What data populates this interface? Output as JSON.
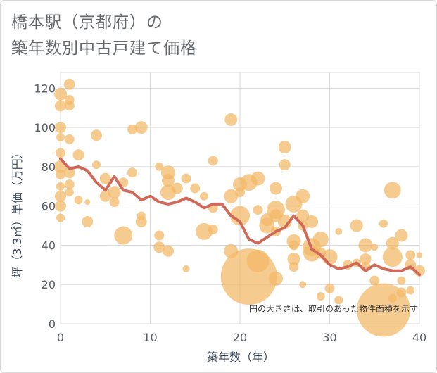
{
  "title": {
    "line1": "橋本駅（京都府）の",
    "line2": "築年数別中古戸建て価格"
  },
  "chart_data": {
    "type": "scatter",
    "title": "橋本駅（京都府）の築年数別中古戸建て価格",
    "xlabel": "築年数（年）",
    "ylabel": "坪（3.3㎡）単価（万円）",
    "xlim": [
      0,
      40
    ],
    "ylim": [
      0,
      128
    ],
    "xticks": [
      0,
      10,
      20,
      30,
      40
    ],
    "yticks": [
      0,
      20,
      40,
      60,
      80,
      100,
      120
    ],
    "grid": true,
    "annotation": "円の大きさは、取引のあった物件面積を示す",
    "colors": {
      "bubble": "#f2b765",
      "line": "#d0695a",
      "grid": "#d9d9d9"
    },
    "bubbles": [
      {
        "x": 0,
        "y": 117,
        "s": 9
      },
      {
        "x": 0,
        "y": 111,
        "s": 8
      },
      {
        "x": 0,
        "y": 100,
        "s": 8
      },
      {
        "x": 0,
        "y": 95,
        "s": 6
      },
      {
        "x": 0,
        "y": 87,
        "s": 7
      },
      {
        "x": 0,
        "y": 80,
        "s": 9
      },
      {
        "x": 0,
        "y": 76,
        "s": 7
      },
      {
        "x": 0,
        "y": 70,
        "s": 6
      },
      {
        "x": 0,
        "y": 65,
        "s": 8
      },
      {
        "x": 0,
        "y": 60,
        "s": 8
      },
      {
        "x": 0,
        "y": 54,
        "s": 6
      },
      {
        "x": 1,
        "y": 122,
        "s": 8
      },
      {
        "x": 1,
        "y": 114,
        "s": 7
      },
      {
        "x": 1,
        "y": 111,
        "s": 7
      },
      {
        "x": 1,
        "y": 94,
        "s": 7
      },
      {
        "x": 1,
        "y": 77,
        "s": 8
      },
      {
        "x": 1,
        "y": 71,
        "s": 7
      },
      {
        "x": 1,
        "y": 67,
        "s": 6
      },
      {
        "x": 2,
        "y": 86,
        "s": 8
      },
      {
        "x": 2,
        "y": 63,
        "s": 6
      },
      {
        "x": 3,
        "y": 62,
        "s": 4
      },
      {
        "x": 3,
        "y": 52,
        "s": 8
      },
      {
        "x": 4,
        "y": 96,
        "s": 8
      },
      {
        "x": 4,
        "y": 81,
        "s": 6
      },
      {
        "x": 5,
        "y": 74,
        "s": 8
      },
      {
        "x": 5,
        "y": 65,
        "s": 8
      },
      {
        "x": 6,
        "y": 67,
        "s": 9
      },
      {
        "x": 6,
        "y": 62,
        "s": 7
      },
      {
        "x": 7,
        "y": 72,
        "s": 7
      },
      {
        "x": 7,
        "y": 45,
        "s": 13
      },
      {
        "x": 8,
        "y": 99,
        "s": 7
      },
      {
        "x": 8,
        "y": 77,
        "s": 7
      },
      {
        "x": 9,
        "y": 100,
        "s": 9
      },
      {
        "x": 9,
        "y": 55,
        "s": 6
      },
      {
        "x": 9,
        "y": 52,
        "s": 8
      },
      {
        "x": 11,
        "y": 80,
        "s": 6
      },
      {
        "x": 11,
        "y": 45,
        "s": 7
      },
      {
        "x": 11,
        "y": 39,
        "s": 8
      },
      {
        "x": 12,
        "y": 77,
        "s": 10
      },
      {
        "x": 12,
        "y": 73,
        "s": 9
      },
      {
        "x": 12,
        "y": 67,
        "s": 11
      },
      {
        "x": 12,
        "y": 37,
        "s": 8
      },
      {
        "x": 13,
        "y": 69,
        "s": 8
      },
      {
        "x": 14,
        "y": 74,
        "s": 7
      },
      {
        "x": 14,
        "y": 28,
        "s": 5
      },
      {
        "x": 15,
        "y": 69,
        "s": 7
      },
      {
        "x": 16,
        "y": 65,
        "s": 6
      },
      {
        "x": 16,
        "y": 47,
        "s": 12
      },
      {
        "x": 17,
        "y": 83,
        "s": 7
      },
      {
        "x": 17,
        "y": 59,
        "s": 7
      },
      {
        "x": 17,
        "y": 48,
        "s": 7
      },
      {
        "x": 19,
        "y": 104,
        "s": 9
      },
      {
        "x": 19,
        "y": 65,
        "s": 10
      },
      {
        "x": 19,
        "y": 37,
        "s": 10
      },
      {
        "x": 20,
        "y": 71,
        "s": 10
      },
      {
        "x": 20,
        "y": 67,
        "s": 7
      },
      {
        "x": 20,
        "y": 55,
        "s": 14
      },
      {
        "x": 21,
        "y": 72,
        "s": 12
      },
      {
        "x": 21,
        "y": 24,
        "s": 40
      },
      {
        "x": 22,
        "y": 74,
        "s": 10
      },
      {
        "x": 22,
        "y": 58,
        "s": 7
      },
      {
        "x": 22,
        "y": 32,
        "s": 16
      },
      {
        "x": 23,
        "y": 53,
        "s": 9
      },
      {
        "x": 23,
        "y": 50,
        "s": 11
      },
      {
        "x": 24,
        "y": 69,
        "s": 9
      },
      {
        "x": 24,
        "y": 58,
        "s": 13
      },
      {
        "x": 24,
        "y": 55,
        "s": 9
      },
      {
        "x": 24,
        "y": 47,
        "s": 7
      },
      {
        "x": 24,
        "y": 23,
        "s": 10
      },
      {
        "x": 25,
        "y": 90,
        "s": 9
      },
      {
        "x": 25,
        "y": 81,
        "s": 8
      },
      {
        "x": 25,
        "y": 52,
        "s": 10
      },
      {
        "x": 26,
        "y": 61,
        "s": 12
      },
      {
        "x": 26,
        "y": 42,
        "s": 10
      },
      {
        "x": 26,
        "y": 40,
        "s": 7
      },
      {
        "x": 26,
        "y": 33,
        "s": 9
      },
      {
        "x": 26,
        "y": 29,
        "s": 7
      },
      {
        "x": 27,
        "y": 65,
        "s": 10
      },
      {
        "x": 27,
        "y": 55,
        "s": 9
      },
      {
        "x": 27,
        "y": 50,
        "s": 7
      },
      {
        "x": 27,
        "y": 20,
        "s": 5
      },
      {
        "x": 28,
        "y": 52,
        "s": 9
      },
      {
        "x": 28,
        "y": 39,
        "s": 13
      },
      {
        "x": 28,
        "y": 36,
        "s": 12
      },
      {
        "x": 29,
        "y": 43,
        "s": 11
      },
      {
        "x": 29,
        "y": 36,
        "s": 8
      },
      {
        "x": 29,
        "y": 14,
        "s": 6
      },
      {
        "x": 30,
        "y": 34,
        "s": 11
      },
      {
        "x": 30,
        "y": 18,
        "s": 7
      },
      {
        "x": 31,
        "y": 47,
        "s": 5
      },
      {
        "x": 31,
        "y": 12,
        "s": 6
      },
      {
        "x": 32,
        "y": 30,
        "s": 7
      },
      {
        "x": 33,
        "y": 50,
        "s": 9
      },
      {
        "x": 33,
        "y": 31,
        "s": 6
      },
      {
        "x": 34,
        "y": 40,
        "s": 10
      },
      {
        "x": 34,
        "y": 33,
        "s": 8
      },
      {
        "x": 34,
        "y": 29,
        "s": 7
      },
      {
        "x": 35,
        "y": 39,
        "s": 5
      },
      {
        "x": 35,
        "y": 22,
        "s": 7
      },
      {
        "x": 36,
        "y": 51,
        "s": 6
      },
      {
        "x": 36,
        "y": 7,
        "s": 38
      },
      {
        "x": 37,
        "y": 68,
        "s": 12
      },
      {
        "x": 37,
        "y": 41,
        "s": 9
      },
      {
        "x": 37,
        "y": 34,
        "s": 14
      },
      {
        "x": 37,
        "y": 13,
        "s": 6
      },
      {
        "x": 38,
        "y": 45,
        "s": 9
      },
      {
        "x": 38,
        "y": 22,
        "s": 6
      },
      {
        "x": 38,
        "y": 16,
        "s": 7
      },
      {
        "x": 39,
        "y": 35,
        "s": 7
      },
      {
        "x": 39,
        "y": 30,
        "s": 8
      },
      {
        "x": 39,
        "y": 17,
        "s": 6
      },
      {
        "x": 40,
        "y": 35,
        "s": 4
      },
      {
        "x": 40,
        "y": 27,
        "s": 8
      }
    ],
    "line": {
      "x": [
        0,
        1,
        2,
        3,
        4,
        5,
        6,
        7,
        8,
        9,
        10,
        11,
        12,
        13,
        14,
        15,
        16,
        17,
        18,
        19,
        20,
        21,
        22,
        23,
        24,
        25,
        26,
        27,
        28,
        29,
        30,
        31,
        32,
        33,
        34,
        35,
        36,
        37,
        38,
        39,
        40
      ],
      "y": [
        84,
        79,
        80,
        78,
        72,
        68,
        75,
        68,
        67,
        63,
        65,
        62,
        61,
        62,
        64,
        62,
        59,
        61,
        61,
        55,
        52,
        43,
        41,
        44,
        47,
        49,
        55,
        50,
        38,
        35,
        30,
        28,
        29,
        31,
        27,
        30,
        28,
        27,
        27,
        29,
        25
      ]
    }
  }
}
